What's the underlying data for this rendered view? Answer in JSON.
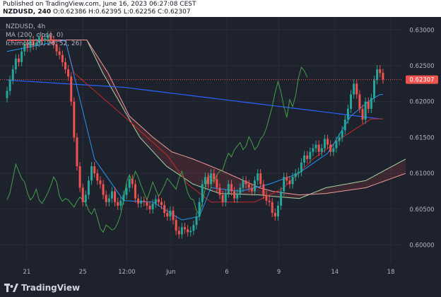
{
  "header": {
    "published": "Published on TradingView.com, June 16, 2023 06:27:08 CEST",
    "symbol": "NZDUSD, 240",
    "ohlc": "O:0.62386 H:0.62395 L:0.62256 C:0.62307"
  },
  "legend": {
    "symbol": "NZDUSD, 4h",
    "ma": "MA (200, close, 0)",
    "ichimoku": "Ichimoku (9, 26, 52, 26)"
  },
  "chart_data": {
    "type": "candlestick",
    "y_ticks": [
      "0.63000",
      "0.62500",
      "0.62000",
      "0.61500",
      "0.61000",
      "0.60500",
      "0.60000"
    ],
    "ylim": [
      0.5975,
      0.6318
    ],
    "x_ticks": [
      "21",
      "25",
      "12:00",
      "Jun",
      "6",
      "9",
      "14",
      "18"
    ],
    "last_price": "0.62307",
    "colors": {
      "up": "#26a69a",
      "down": "#ef5350",
      "ma": "#2962ff",
      "conversion": "#2196f3",
      "base": "#c62828",
      "lagging": "#43a047",
      "span_a": "#a5d6a7",
      "span_b": "#ef9a9a",
      "cloud_bear": "rgba(239,83,80,0.15)",
      "cloud_bull": "rgba(76,175,80,0.18)"
    },
    "close": [
      0.6215,
      0.623,
      0.6245,
      0.626,
      0.6255,
      0.627,
      0.628,
      0.6275,
      0.6285,
      0.6278,
      0.6282,
      0.629,
      0.6285,
      0.6288,
      0.6292,
      0.6286,
      0.628,
      0.627,
      0.6265,
      0.6255,
      0.6245,
      0.6235,
      0.62,
      0.615,
      0.611,
      0.608,
      0.606,
      0.607,
      0.609,
      0.611,
      0.61,
      0.609,
      0.6085,
      0.607,
      0.606,
      0.6065,
      0.6075,
      0.606,
      0.6055,
      0.6062,
      0.607,
      0.608,
      0.6092,
      0.6085,
      0.6065,
      0.6058,
      0.6062,
      0.606,
      0.6055,
      0.605,
      0.6058,
      0.6064,
      0.606,
      0.6056,
      0.6045,
      0.604,
      0.6048,
      0.6035,
      0.602,
      0.6015,
      0.6025,
      0.6022,
      0.6018,
      0.602,
      0.6028,
      0.604,
      0.606,
      0.6085,
      0.6095,
      0.6085,
      0.61,
      0.6092,
      0.608,
      0.607,
      0.606,
      0.6072,
      0.6085,
      0.6075,
      0.6065,
      0.6072,
      0.608,
      0.609,
      0.6085,
      0.608,
      0.6075,
      0.609,
      0.61,
      0.6085,
      0.607,
      0.6062,
      0.606,
      0.6045,
      0.604,
      0.6055,
      0.6075,
      0.6095,
      0.609,
      0.6085,
      0.6095,
      0.61,
      0.6102,
      0.6115,
      0.6125,
      0.612,
      0.613,
      0.6135,
      0.614,
      0.613,
      0.6135,
      0.6148,
      0.614,
      0.613,
      0.6135,
      0.6145,
      0.615,
      0.616,
      0.6175,
      0.619,
      0.621,
      0.6225,
      0.621,
      0.619,
      0.6175,
      0.62,
      0.619,
      0.6205,
      0.623,
      0.6245,
      0.624,
      0.6231
    ],
    "ma_y": [
      [
        0,
        0.623
      ],
      [
        40,
        0.622
      ],
      [
        80,
        0.62
      ],
      [
        128,
        0.6176
      ]
    ],
    "base_y": [
      [
        0,
        0.6285
      ],
      [
        20,
        0.6285
      ],
      [
        23,
        0.624
      ],
      [
        40,
        0.618
      ],
      [
        55,
        0.6125
      ],
      [
        62,
        0.6085
      ],
      [
        70,
        0.606
      ],
      [
        85,
        0.606
      ],
      [
        95,
        0.608
      ],
      [
        105,
        0.612
      ],
      [
        115,
        0.615
      ],
      [
        125,
        0.6176
      ],
      [
        128,
        0.6176
      ]
    ],
    "conv_y": [
      [
        0,
        0.627
      ],
      [
        20,
        0.6286
      ],
      [
        24,
        0.622
      ],
      [
        30,
        0.612
      ],
      [
        40,
        0.6062
      ],
      [
        50,
        0.606
      ],
      [
        60,
        0.6035
      ],
      [
        66,
        0.604
      ],
      [
        70,
        0.608
      ],
      [
        80,
        0.6075
      ],
      [
        90,
        0.6085
      ],
      [
        100,
        0.61
      ],
      [
        110,
        0.6128
      ],
      [
        118,
        0.618
      ],
      [
        124,
        0.62
      ],
      [
        128,
        0.621
      ]
    ]
  }
}
